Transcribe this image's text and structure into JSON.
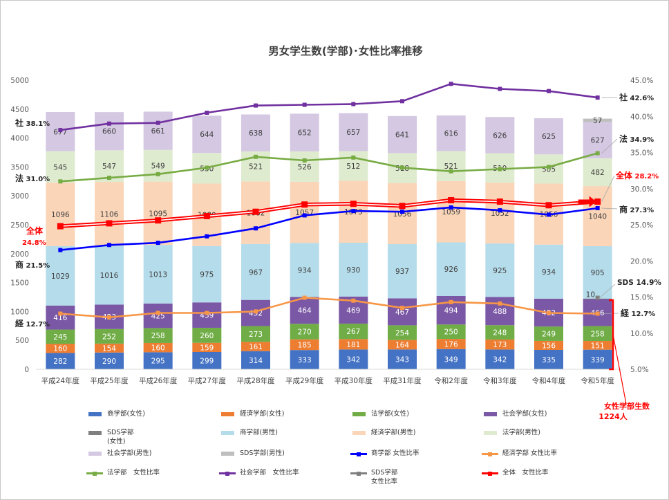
{
  "chart_data": {
    "type": "bar",
    "title": "男女学生数(学部)･女性比率推移",
    "categories": [
      "平成24年度",
      "平成25年度",
      "平成26年度",
      "平成27年度",
      "平成28年度",
      "平成29年度",
      "平成30年度",
      "平成31年度",
      "令和2年度",
      "令和3年度",
      "令和4年度",
      "令和5年度"
    ],
    "left_axis": {
      "min": 0,
      "max": 5000,
      "ticks": [
        "0",
        "500",
        "1000",
        "1500",
        "2000",
        "2500",
        "3000",
        "3500",
        "4000",
        "4500",
        "5000"
      ]
    },
    "right_axis": {
      "min": 0.05,
      "max": 0.45,
      "ticks": [
        "5.0%",
        "10.0%",
        "15.0%",
        "20.0%",
        "25.0%",
        "30.0%",
        "35.0%",
        "40.0%",
        "45.0%"
      ]
    },
    "stacked_series": [
      {
        "name": "商学部(女性)",
        "color": "#4472c4",
        "values": [
          282,
          290,
          295,
          299,
          314,
          333,
          342,
          343,
          349,
          342,
          335,
          339
        ]
      },
      {
        "name": "経済学部(女性)",
        "color": "#ed7d31",
        "values": [
          160,
          154,
          160,
          159,
          161,
          185,
          181,
          164,
          176,
          173,
          156,
          151
        ]
      },
      {
        "name": "法学部(女性)",
        "color": "#70ad47",
        "values": [
          245,
          252,
          258,
          260,
          273,
          270,
          267,
          254,
          250,
          248,
          249,
          258
        ]
      },
      {
        "name": "社会学部(女性)",
        "color": "#7a58a6",
        "values": [
          416,
          423,
          425,
          439,
          452,
          464,
          469,
          467,
          494,
          488,
          482,
          466
        ]
      },
      {
        "name": "SDS学部\n(女性)",
        "color": "#7f7f7f",
        "values": [
          0,
          0,
          0,
          0,
          0,
          0,
          0,
          0,
          0,
          0,
          0,
          10
        ]
      },
      {
        "name": "商学部(男性)",
        "color": "#b5dcea",
        "values": [
          1029,
          1016,
          1013,
          975,
          967,
          934,
          930,
          937,
          926,
          925,
          934,
          905
        ]
      },
      {
        "name": "経済学部(男性)",
        "color": "#fad5b8",
        "values": [
          1096,
          1106,
          1095,
          1080,
          1082,
          1057,
          1073,
          1056,
          1059,
          1052,
          1056,
          1040
        ]
      },
      {
        "name": "法学部(男性)",
        "color": "#dfebcf",
        "values": [
          545,
          547,
          549,
          530,
          521,
          526,
          512,
          518,
          521,
          510,
          505,
          482
        ]
      },
      {
        "name": "社会学部(男性)",
        "color": "#d4c8e2",
        "values": [
          677,
          660,
          661,
          644,
          638,
          652,
          657,
          641,
          616,
          626,
          625,
          627
        ]
      },
      {
        "name": "SDS学部(男性)",
        "color": "#bfbfbf",
        "values": [
          0,
          0,
          0,
          0,
          0,
          0,
          0,
          0,
          0,
          0,
          0,
          57
        ]
      }
    ],
    "line_series": [
      {
        "name": "商学部 女性比率",
        "color": "#0000ff",
        "values": [
          0.215,
          0.222,
          0.225,
          0.234,
          0.245,
          0.263,
          0.269,
          0.268,
          0.274,
          0.27,
          0.264,
          0.273
        ]
      },
      {
        "name": "経済学部 女性比率",
        "color": "#f79646",
        "values": [
          0.127,
          0.122,
          0.128,
          0.128,
          0.13,
          0.149,
          0.145,
          0.135,
          0.143,
          0.141,
          0.128,
          0.127
        ]
      },
      {
        "name": "法学部　女性比率",
        "color": "#77ab43",
        "values": [
          0.31,
          0.315,
          0.32,
          0.329,
          0.344,
          0.339,
          0.343,
          0.329,
          0.324,
          0.327,
          0.33,
          0.349
        ]
      },
      {
        "name": "社会学部　女性比率",
        "color": "#7030a0",
        "values": [
          0.381,
          0.39,
          0.391,
          0.405,
          0.415,
          0.416,
          0.417,
          0.421,
          0.445,
          0.438,
          0.435,
          0.426
        ]
      },
      {
        "name": "SDS学部\n女性比率",
        "color": "#7f7f7f",
        "values": [
          null,
          null,
          null,
          null,
          null,
          null,
          null,
          null,
          null,
          null,
          null,
          0.149
        ]
      },
      {
        "name": "全体　女性比率",
        "color": "#ff0000",
        "values": [
          0.248,
          0.252,
          0.256,
          0.262,
          0.268,
          0.278,
          0.279,
          0.276,
          0.284,
          0.282,
          0.277,
          0.282
        ]
      }
    ],
    "annotations": {
      "sha_start": "社",
      "sha_start_pct": "38.1%",
      "sha_end": "社",
      "sha_end_pct": "42.6%",
      "ho_start": "法",
      "ho_start_pct": "31.0%",
      "ho_end": "法",
      "ho_end_pct": "34.9%",
      "zentai_start": "全体",
      "zentai_start_pct": "24.8%",
      "zentai_end": "全体",
      "zentai_end_pct": "28.2%",
      "sho_start": "商",
      "sho_start_pct": "21.5%",
      "sho_end": "商",
      "sho_end_pct": "27.3%",
      "kei_start": "経",
      "kei_start_pct": "12.7%",
      "kei_end": "経",
      "kei_end_pct": "12.7%",
      "sds_end": "SDS 14.9%",
      "female_total_label": "女性学部生数",
      "female_total_value": "1224人"
    },
    "grid": false,
    "legend_position": "bottom"
  }
}
